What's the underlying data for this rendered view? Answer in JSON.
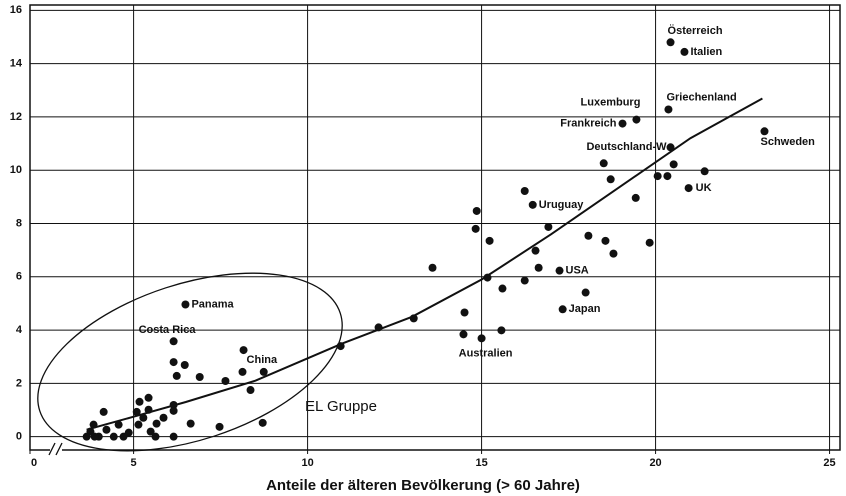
{
  "chart_data": {
    "type": "scatter",
    "x_label": "Anteile der älteren Bevölkerung (> 60 Jahre)",
    "annotation": "EL Gruppe",
    "color": "#111111",
    "grid": true,
    "xlim": [
      0,
      25.3
    ],
    "ylim": [
      -0.5,
      16.2
    ],
    "xticks": [
      0,
      5,
      10,
      15,
      20,
      25
    ],
    "yticks": [
      0,
      2,
      4,
      6,
      8,
      10,
      12,
      14,
      16
    ],
    "labels": [
      "Österreich",
      "Italien",
      "Griechenland",
      "Luxemburg",
      "Frankreich",
      "Deutschland-W",
      "Schweden",
      "UK",
      "Uruguay",
      "USA",
      "Japan",
      "Australien",
      "Panama",
      "Costa Rica",
      "China"
    ],
    "x": [
      20.43,
      20.83,
      20.37,
      19.45,
      19.05,
      20.43,
      23.13,
      20.95,
      16.47,
      17.24,
      17.33,
      15.0,
      6.49,
      6.15,
      8.16,
      21.41,
      20.06,
      20.34,
      20.52,
      19.43,
      18.71,
      18.51,
      16.24,
      14.86,
      14.83,
      15.23,
      16.92,
      18.07,
      18.56,
      18.79,
      19.83,
      16.55,
      16.64,
      16.24,
      15.17,
      15.6,
      13.59,
      17.99,
      14.51,
      14.48,
      15.57,
      13.05,
      12.04,
      10.95,
      8.74,
      8.36,
      8.13,
      7.64,
      6.9,
      6.47,
      6.24,
      6.15,
      8.71,
      7.47,
      6.64,
      6.15,
      6.15,
      6.15,
      5.43,
      5.17,
      5.43,
      5.09,
      5.66,
      5.49,
      5.14,
      4.86,
      4.57,
      4.14,
      4.22,
      4.0,
      3.85,
      3.76,
      3.65,
      3.88,
      4.71,
      4.43,
      5.28,
      5.86,
      5.63
    ],
    "y": [
      14.8,
      14.44,
      12.28,
      11.9,
      11.75,
      10.86,
      11.46,
      9.33,
      8.7,
      6.23,
      4.78,
      3.69,
      4.96,
      3.58,
      3.25,
      9.96,
      9.78,
      9.78,
      10.22,
      8.96,
      9.66,
      10.26,
      9.22,
      8.47,
      7.8,
      7.35,
      7.87,
      7.54,
      7.35,
      6.87,
      7.28,
      6.98,
      6.34,
      5.86,
      5.97,
      5.56,
      6.34,
      5.41,
      4.66,
      3.84,
      3.99,
      4.44,
      4.1,
      3.4,
      2.43,
      1.75,
      2.43,
      2.09,
      2.24,
      2.69,
      2.28,
      2.8,
      0.52,
      0.37,
      0.49,
      1.19,
      0.97,
      0,
      1.46,
      1.31,
      1.01,
      0.93,
      0.49,
      0.19,
      0.45,
      0.15,
      0.45,
      0.93,
      0.26,
      0,
      0.45,
      0.19,
      0,
      0,
      0,
      0,
      0.71,
      0.71,
      0
    ],
    "fit": {
      "x": [
        3.65,
        5,
        6.5,
        8.5,
        11,
        13,
        15,
        17,
        19,
        21,
        23.07
      ],
      "y": [
        0.26,
        0.75,
        1.3,
        2.1,
        3.5,
        4.5,
        5.9,
        7.6,
        9.4,
        11.2,
        12.69
      ]
    }
  }
}
